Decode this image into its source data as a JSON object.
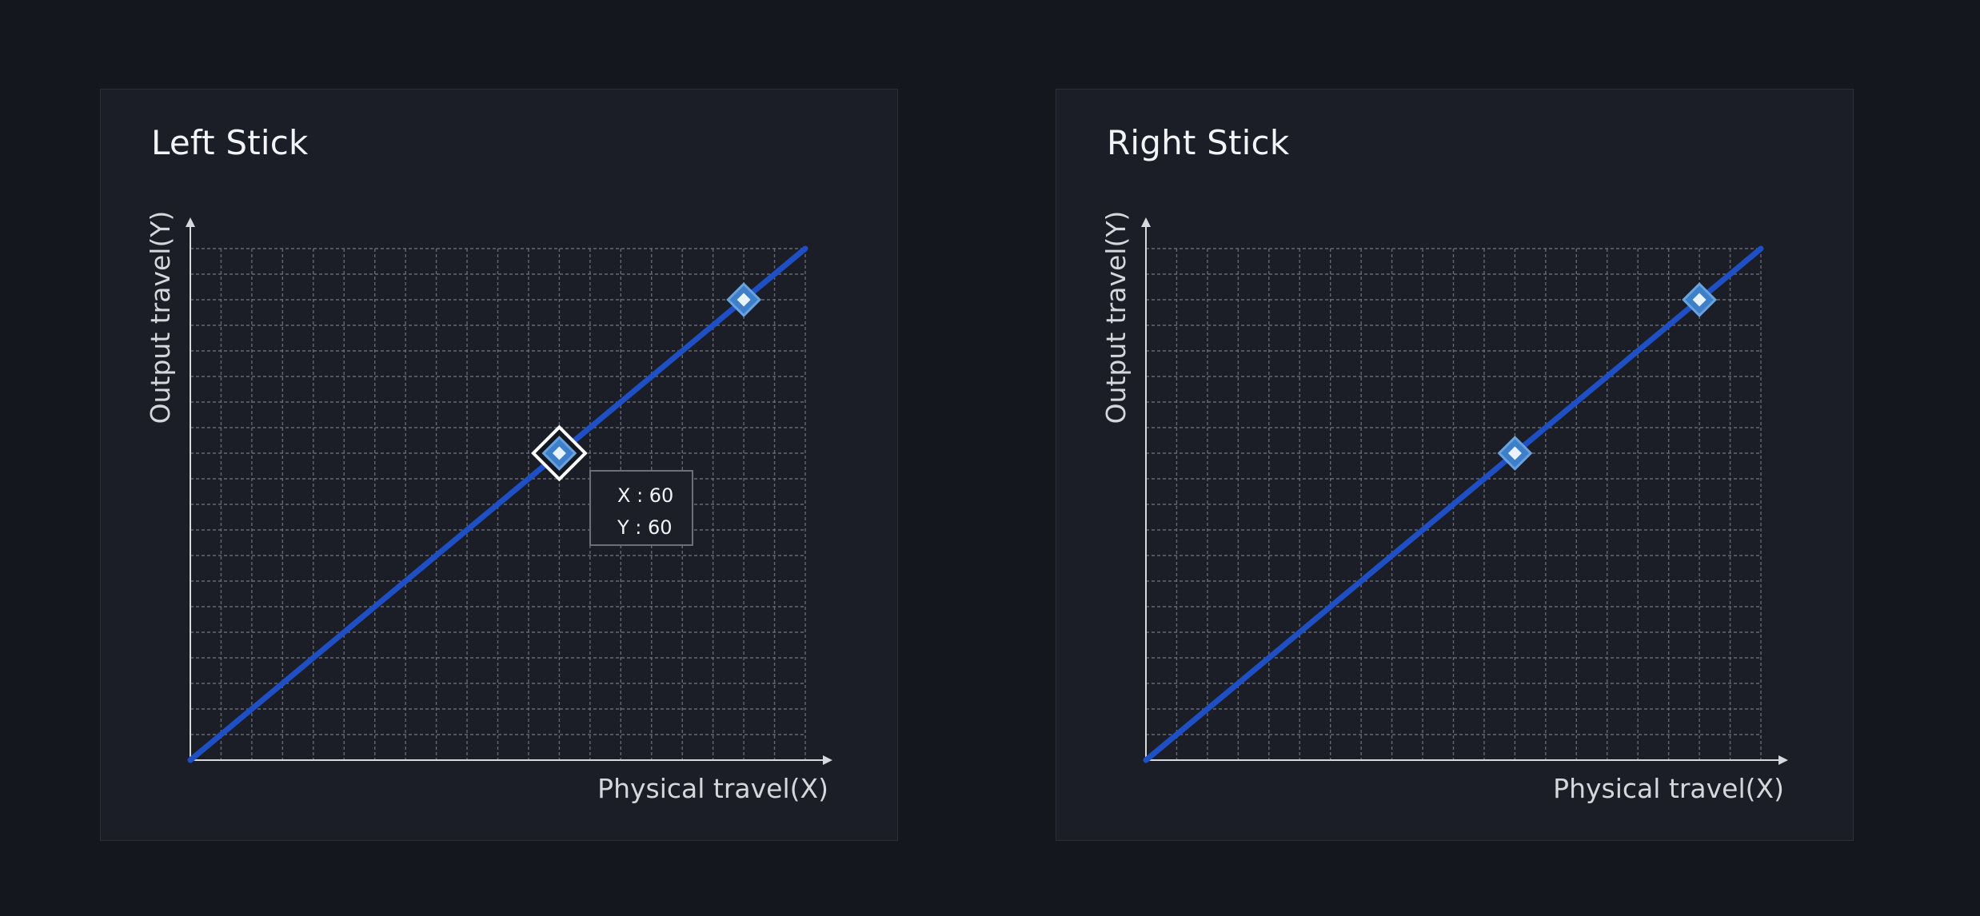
{
  "colors": {
    "page_background": "#14171d",
    "panel_background": "#1b1e26",
    "curve": "#1f4fc4",
    "control_point": "#3d7fc8",
    "grid": "#6c7079"
  },
  "sticks": [
    {
      "title": "Left Stick",
      "y_axis_label": "Output travel(Y)",
      "x_axis_label": "Physical travel(X)",
      "curve_points": [
        [
          0,
          0
        ],
        [
          60,
          60
        ],
        [
          90,
          90
        ],
        [
          100,
          100
        ]
      ],
      "control_points": [
        {
          "x": 60,
          "y": 60,
          "selected": true
        },
        {
          "x": 90,
          "y": 90,
          "selected": false
        }
      ],
      "tooltip": {
        "x_text": "X : 60",
        "y_text": "Y : 60"
      }
    },
    {
      "title": "Right Stick",
      "y_axis_label": "Output travel(Y)",
      "x_axis_label": "Physical travel(X)",
      "curve_points": [
        [
          0,
          0
        ],
        [
          60,
          60
        ],
        [
          90,
          90
        ],
        [
          100,
          100
        ]
      ],
      "control_points": [
        {
          "x": 60,
          "y": 60,
          "selected": false
        },
        {
          "x": 90,
          "y": 90,
          "selected": false
        }
      ]
    }
  ],
  "chart_data": [
    {
      "type": "line",
      "title": "Left Stick",
      "xlabel": "Physical travel(X)",
      "ylabel": "Output travel(Y)",
      "xlim": [
        0,
        100
      ],
      "ylim": [
        0,
        100
      ],
      "grid": true,
      "series": [
        {
          "x": [
            0,
            60,
            90,
            100
          ],
          "values": [
            0,
            60,
            90,
            100
          ]
        }
      ]
    },
    {
      "type": "line",
      "title": "Right Stick",
      "xlabel": "Physical travel(X)",
      "ylabel": "Output travel(Y)",
      "xlim": [
        0,
        100
      ],
      "ylim": [
        0,
        100
      ],
      "grid": true,
      "series": [
        {
          "x": [
            0,
            60,
            90,
            100
          ],
          "values": [
            0,
            60,
            90,
            100
          ]
        }
      ]
    }
  ]
}
